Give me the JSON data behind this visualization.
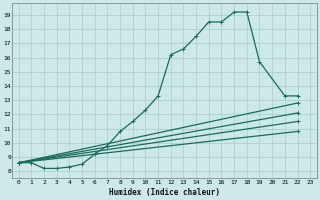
{
  "title": "",
  "xlabel": "Humidex (Indice chaleur)",
  "bg_color": "#cce8e8",
  "grid_color": "#aacccc",
  "line_color": "#1a6b5a",
  "xlim": [
    -0.5,
    23.5
  ],
  "ylim": [
    7.5,
    19.8
  ],
  "xticks": [
    0,
    1,
    2,
    3,
    4,
    5,
    6,
    7,
    8,
    9,
    10,
    11,
    12,
    13,
    14,
    15,
    16,
    17,
    18,
    19,
    20,
    21,
    22,
    23
  ],
  "yticks": [
    8,
    9,
    10,
    11,
    12,
    13,
    14,
    15,
    16,
    17,
    18,
    19
  ],
  "main_curve_x": [
    0,
    1,
    2,
    3,
    4,
    5,
    6,
    7,
    8,
    9,
    10,
    11,
    12,
    13,
    14,
    15,
    16,
    17,
    18,
    19,
    21,
    22
  ],
  "main_curve_y": [
    8.6,
    8.6,
    8.2,
    8.2,
    8.3,
    8.5,
    9.2,
    9.8,
    10.8,
    11.5,
    12.3,
    13.3,
    16.2,
    16.6,
    17.5,
    18.5,
    18.5,
    19.2,
    19.2,
    15.7,
    13.3,
    13.3
  ],
  "line2_x": [
    0,
    21,
    22
  ],
  "line2_y": [
    8.6,
    12.8,
    12.8
  ],
  "line3_x": [
    0,
    22
  ],
  "line3_y": [
    8.6,
    12.8
  ],
  "line4_x": [
    0,
    22
  ],
  "line4_y": [
    8.6,
    12.1
  ],
  "line5_x": [
    0,
    22
  ],
  "line5_y": [
    8.6,
    11.5
  ],
  "line6_x": [
    0,
    22
  ],
  "line6_y": [
    8.6,
    10.8
  ],
  "marker": "+",
  "marker_size": 3.5,
  "linewidth": 0.9,
  "tick_fontsize": 4.5,
  "xlabel_fontsize": 5.5
}
